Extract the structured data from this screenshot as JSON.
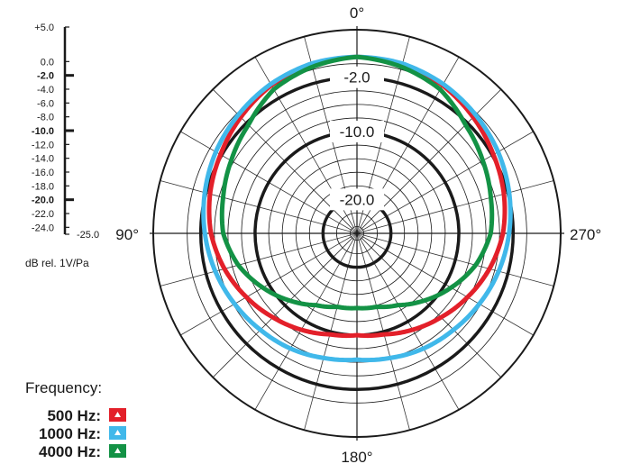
{
  "chart_data": {
    "type": "polar",
    "unit_label": "dB rel. 1V/Pa",
    "scale": {
      "max": 5.0,
      "min": -25.0,
      "ticks": [
        {
          "value": 5.0,
          "label": "+5.0",
          "bold": false
        },
        {
          "value": 0.0,
          "label": "0.0",
          "bold": false
        },
        {
          "value": -2.0,
          "label": "-2.0",
          "bold": true
        },
        {
          "value": -4.0,
          "label": "-4.0",
          "bold": false
        },
        {
          "value": -6.0,
          "label": "-6.0",
          "bold": false
        },
        {
          "value": -8.0,
          "label": "-8.0",
          "bold": false
        },
        {
          "value": -10.0,
          "label": "-10.0",
          "bold": true
        },
        {
          "value": -12.0,
          "label": "-12.0",
          "bold": false
        },
        {
          "value": -14.0,
          "label": "-14.0",
          "bold": false
        },
        {
          "value": -16.0,
          "label": "-16.0",
          "bold": false
        },
        {
          "value": -18.0,
          "label": "-18.0",
          "bold": false
        },
        {
          "value": -20.0,
          "label": "-20.0",
          "bold": true
        },
        {
          "value": -22.0,
          "label": "-22.0",
          "bold": false
        },
        {
          "value": -24.0,
          "label": "-24.0",
          "bold": false
        },
        {
          "value": -25.0,
          "label": "-25.0",
          "bold": false
        }
      ]
    },
    "rings": [
      5,
      0,
      -2,
      -4,
      -6,
      -8,
      -10,
      -12,
      -14,
      -16,
      -18,
      -20,
      -22,
      -24
    ],
    "bold_rings": [
      -2,
      -10,
      -20
    ],
    "ring_labels": [
      {
        "value": -2,
        "label": "-2.0"
      },
      {
        "value": -10,
        "label": "-10.0"
      },
      {
        "value": -20,
        "label": "-20.0"
      }
    ],
    "angle_labels": [
      {
        "angle": 0,
        "label": "0°"
      },
      {
        "angle": 90,
        "label": "90°"
      },
      {
        "angle": 180,
        "label": "180°"
      },
      {
        "angle": 270,
        "label": "270°"
      }
    ],
    "legend_title": "Frequency:",
    "series": [
      {
        "name": "500 Hz:",
        "color": "#e3202a",
        "angles": [
          0,
          15,
          30,
          45,
          60,
          75,
          90,
          105,
          120,
          135,
          150,
          165,
          180
        ],
        "values": [
          1.0,
          0.8,
          0.2,
          -0.8,
          -1.8,
          -2.6,
          -3.5,
          -4.8,
          -6.2,
          -7.5,
          -8.6,
          -9.6,
          -10.0
        ]
      },
      {
        "name": "1000 Hz:",
        "color": "#40b8ea",
        "angles": [
          0,
          15,
          30,
          45,
          60,
          75,
          90,
          105,
          120,
          135,
          150,
          165,
          180
        ],
        "values": [
          1.0,
          0.9,
          0.4,
          -0.3,
          -1.0,
          -1.8,
          -2.6,
          -3.4,
          -4.2,
          -4.9,
          -5.4,
          -6.0,
          -6.4
        ]
      },
      {
        "name": "4000 Hz:",
        "color": "#139245",
        "angles": [
          0,
          15,
          30,
          45,
          60,
          75,
          90,
          105,
          120,
          135,
          150,
          165,
          180
        ],
        "values": [
          1.0,
          0.4,
          -0.5,
          -2.4,
          -3.6,
          -4.6,
          -5.3,
          -6.9,
          -9.0,
          -11.0,
          -12.8,
          -13.8,
          -14.0
        ]
      }
    ]
  }
}
